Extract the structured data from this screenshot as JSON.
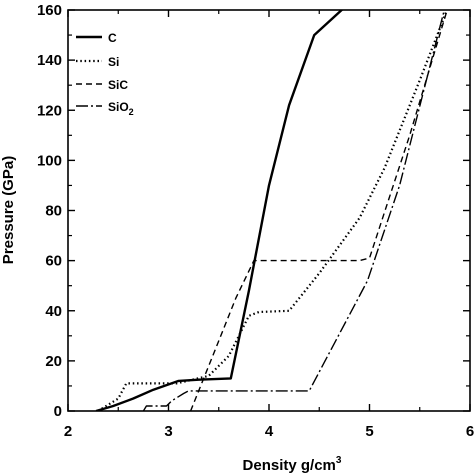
{
  "chart_data": {
    "type": "line",
    "xlabel": "Density g/cm",
    "xlabel_sup": "3",
    "ylabel": "Pressure (GPa)",
    "xlim": [
      2,
      6
    ],
    "ylim": [
      0,
      160
    ],
    "xticks": [
      "2",
      "3",
      "4",
      "5",
      "6"
    ],
    "yticks": [
      "0",
      "20",
      "40",
      "60",
      "80",
      "100",
      "120",
      "140",
      "160"
    ],
    "legend_position": "top-left",
    "series": [
      {
        "name": "C",
        "style": "solid",
        "points": [
          [
            2.28,
            0
          ],
          [
            2.45,
            2
          ],
          [
            2.65,
            5
          ],
          [
            2.85,
            8.5
          ],
          [
            3.1,
            12
          ],
          [
            3.3,
            12.5
          ],
          [
            3.62,
            13
          ],
          [
            3.8,
            48
          ],
          [
            4.0,
            90
          ],
          [
            4.2,
            122
          ],
          [
            4.45,
            150
          ],
          [
            4.75,
            161
          ]
        ]
      },
      {
        "name": "Si",
        "style": "dotted",
        "points": [
          [
            2.3,
            0
          ],
          [
            2.5,
            5
          ],
          [
            2.58,
            11
          ],
          [
            3.08,
            11
          ],
          [
            3.4,
            14
          ],
          [
            3.6,
            22
          ],
          [
            3.8,
            38
          ],
          [
            3.9,
            39.5
          ],
          [
            4.2,
            40
          ],
          [
            4.5,
            55
          ],
          [
            4.9,
            77
          ],
          [
            5.15,
            97
          ],
          [
            5.5,
            132
          ],
          [
            5.78,
            161
          ]
        ]
      },
      {
        "name": "SiC",
        "style": "dashed",
        "points": [
          [
            3.22,
            0
          ],
          [
            3.5,
            28
          ],
          [
            3.67,
            45
          ],
          [
            3.85,
            60
          ],
          [
            4.9,
            60
          ],
          [
            5.0,
            61
          ],
          [
            5.4,
            110
          ],
          [
            5.78,
            161
          ]
        ]
      },
      {
        "name_main": "SiO",
        "name_sub": "2",
        "style": "dash-dot",
        "points": [
          [
            2.75,
            0
          ],
          [
            2.78,
            2
          ],
          [
            2.98,
            2
          ],
          [
            3.03,
            4
          ],
          [
            3.15,
            7
          ],
          [
            3.2,
            8
          ],
          [
            4.4,
            8
          ],
          [
            4.98,
            52
          ],
          [
            5.3,
            90
          ],
          [
            5.75,
            161
          ]
        ]
      }
    ]
  }
}
